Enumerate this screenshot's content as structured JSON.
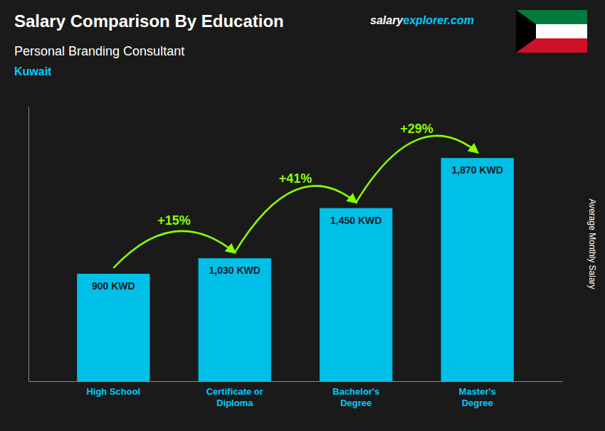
{
  "chart_data": {
    "type": "bar",
    "title": "Salary Comparison By Education",
    "subtitle": "Personal Branding Consultant",
    "country": "Kuwait",
    "watermark": [
      "salary",
      "explorer.com"
    ],
    "ylabel": "Average Monthly Salary",
    "categories": [
      "High School",
      "Certificate or\nDiploma",
      "Bachelor's\nDegree",
      "Master's\nDegree"
    ],
    "values": [
      900,
      1030,
      1450,
      1870
    ],
    "value_labels": [
      "900 KWD",
      "1,030 KWD",
      "1,450 KWD",
      "1,870 KWD"
    ],
    "annotations": [
      "+15%",
      "+41%",
      "+29%"
    ],
    "color": "#00c0e8",
    "ylim": [
      0,
      2300
    ],
    "data_labels": true,
    "tick_labels": "x",
    "grid": false
  }
}
